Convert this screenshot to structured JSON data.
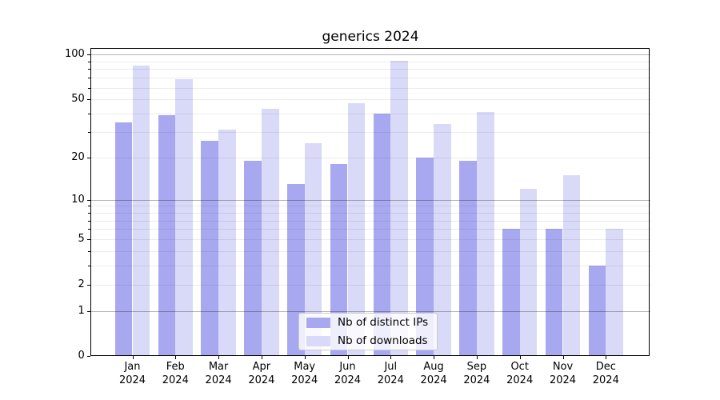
{
  "chart_data": {
    "type": "bar",
    "title": "generics 2024",
    "categories": [
      "Jan",
      "Feb",
      "Mar",
      "Apr",
      "May",
      "Jun",
      "Jul",
      "Aug",
      "Sep",
      "Oct",
      "Nov",
      "Dec"
    ],
    "category_year": "2024",
    "series": [
      {
        "name": "Nb of distinct IPs",
        "color": "#a8a8f0",
        "values": [
          35,
          39,
          26,
          19,
          13,
          18,
          40,
          20,
          19,
          6,
          6,
          3
        ]
      },
      {
        "name": "Nb of downloads",
        "color": "#d9d9f8",
        "values": [
          84,
          68,
          31,
          43,
          25,
          47,
          91,
          34,
          41,
          12,
          15,
          6
        ]
      }
    ],
    "y_axis": {
      "scale": "symlog-log1p",
      "ticks": [
        0,
        1,
        2,
        5,
        10,
        20,
        50,
        100
      ],
      "major_gridlines": [
        1,
        10,
        100
      ],
      "minor_gridlines": [
        2,
        3,
        4,
        5,
        6,
        7,
        8,
        9,
        20,
        30,
        40,
        50,
        60,
        70,
        80,
        90
      ],
      "range_top": 100
    },
    "legend": {
      "position": "lower center"
    },
    "grid": true
  }
}
